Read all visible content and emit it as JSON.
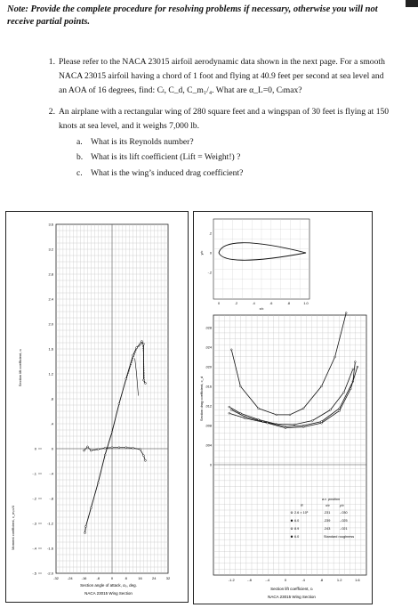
{
  "note": "Note: Provide the complete procedure for resolving problems if necessary, otherwise you will not receive partial points.",
  "problems": [
    {
      "number": "1.",
      "lines": [
        "Please refer to the NACA 23015 airfoil aerodynamic data shown in the next page.  For a smooth",
        "NACA 23015 airfoil having a chord of 1 foot and flying at 40.9 feet per second at sea level and",
        "an AOA of 16 degrees, find: Cₗ, C_d, C_m₁/₄.  What are α_L=0, Cₗmax?"
      ]
    },
    {
      "number": "2.",
      "lines": [
        "An airplane with a rectangular wing of 280 square feet and a wingspan of 30 feet is flying at 150",
        "knots at sea level, and it weighs 7,000 lb."
      ],
      "subitems": [
        {
          "label": "a.",
          "text": "What is its Reynolds number?"
        },
        {
          "label": "b.",
          "text": "What is its lift coefficient (Lift = Weight!) ?"
        },
        {
          "label": "c.",
          "text": "What is the wing’s induced drag coefficient?"
        }
      ]
    }
  ],
  "left_chart": {
    "ylabel_lift": "Section lift coefficient, cₗ",
    "ylabel_moment": "Moment coefficient, c_m,c/4",
    "xlabel": "Section angle of attack, α₀, deg.",
    "caption": "NACA 23015 Wing Section",
    "cl_ticks": [
      "3.6",
      "3.2",
      "2.8",
      "2.4",
      "2.0",
      "1.6",
      "1.2",
      ".8",
      ".4",
      "0",
      "-.4",
      "-.8",
      "-1.2",
      "-1.6",
      "-2.0"
    ],
    "cm_ticks": [
      "0",
      "-.1",
      "-.2",
      "-.3",
      "-.4",
      "-.5"
    ],
    "x_ticks": [
      "-32",
      "-24",
      "-16",
      "-8",
      "0",
      "8",
      "16",
      "24",
      "32"
    ]
  },
  "right_chart": {
    "ylabel": "Section drag coefficient, c_d",
    "xlabel": "Section lift coefficient, cₗ",
    "caption": "NACA 23015 Wing Section",
    "cd_ticks": [
      ".028",
      ".024",
      ".020",
      ".016",
      ".012",
      ".008",
      ".004",
      "0"
    ],
    "x_ticks": [
      "-1.2",
      "-.8",
      "-.4",
      "0",
      ".4",
      ".8",
      "1.2",
      "1.6"
    ],
    "airfoil_xlabel": "x/c",
    "airfoil_ylabel": "y/c",
    "airfoil_x_ticks": [
      "0",
      ".2",
      ".4",
      ".6",
      ".8",
      "1.0"
    ],
    "airfoil_y_ticks": [
      ".2",
      "0",
      "-.2"
    ],
    "legend_headers": [
      "R",
      "a.c. position",
      "x/c",
      "y/c"
    ],
    "legend_rows": [
      {
        "r": "2.6 × 10⁶",
        "x": ".231",
        "y": "-.030"
      },
      {
        "r": "6.0",
        "x": ".239",
        "y": "-.025"
      },
      {
        "r": "8.9",
        "x": ".243",
        "y": "-.021"
      },
      {
        "r": "6.0",
        "x": "Standard roughness",
        "y": ""
      }
    ]
  }
}
